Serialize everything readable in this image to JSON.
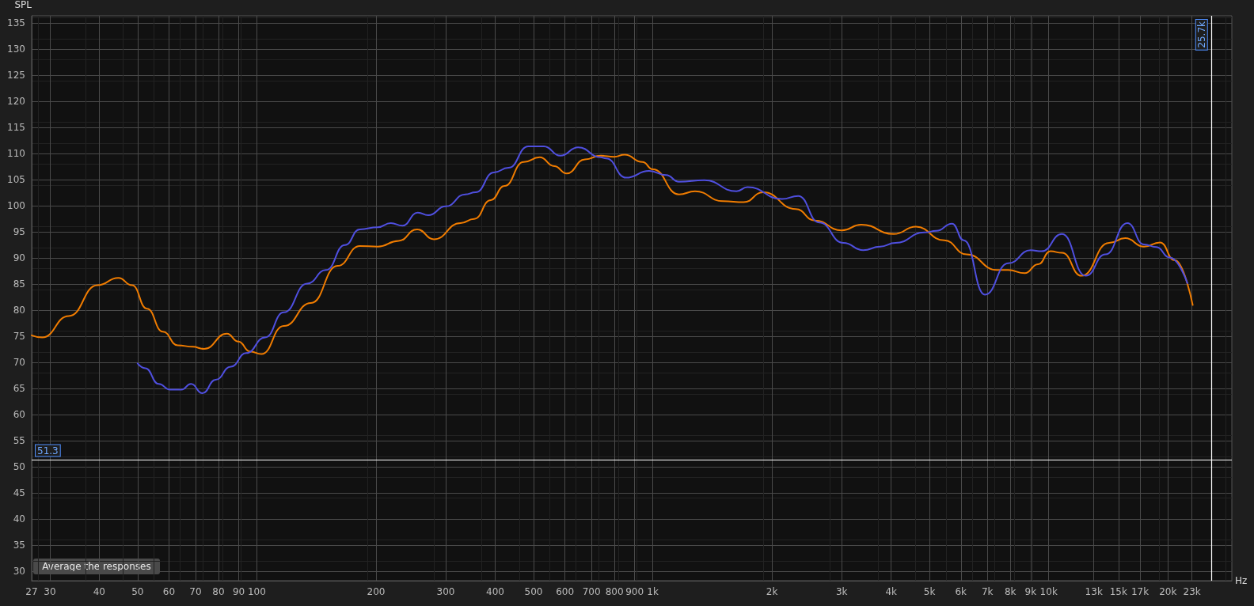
{
  "chart_data": {
    "type": "line",
    "ylabel": "SPL",
    "xlabel": "Hz",
    "log": "x",
    "grid": true,
    "marker": "none",
    "line_style": "solid",
    "xlim": [
      27,
      29000
    ],
    "ylim": [
      28.2,
      136.4
    ],
    "xticks": [
      27,
      30,
      40,
      50,
      60,
      70,
      80,
      90,
      100,
      200,
      300,
      400,
      500,
      600,
      700,
      800,
      900,
      {
        "value": 1000,
        "label": "1k"
      },
      {
        "value": 2000,
        "label": "2k"
      },
      {
        "value": 3000,
        "label": "3k"
      },
      {
        "value": 4000,
        "label": "4k"
      },
      {
        "value": 5000,
        "label": "5k"
      },
      {
        "value": 6000,
        "label": "6k"
      },
      {
        "value": 7000,
        "label": "7k"
      },
      {
        "value": 8000,
        "label": "8k"
      },
      {
        "value": 9000,
        "label": "9k"
      },
      {
        "value": 10000,
        "label": "10k"
      },
      {
        "value": 13000,
        "label": "13k"
      },
      {
        "value": 15000,
        "label": "15k"
      },
      {
        "value": 17000,
        "label": "17k"
      },
      {
        "value": 20000,
        "label": "20k"
      },
      {
        "value": 23000,
        "label": "23k"
      }
    ],
    "yticks": [
      30,
      35,
      40,
      45,
      50,
      55,
      60,
      65,
      70,
      75,
      80,
      85,
      90,
      95,
      100,
      105,
      110,
      115,
      120,
      125,
      130,
      135
    ],
    "series": [
      {
        "color": "#f07c00",
        "x": [
          27,
          28.7,
          33.5,
          39.6,
          44.7,
          48.4,
          52.8,
          57.9,
          63.1,
          68.9,
          73.6,
          84,
          89.9,
          96.1,
          102.7,
          117,
          137,
          160,
          182,
          202,
          228,
          254,
          280,
          327,
          354,
          390,
          422,
          472,
          518,
          564,
          606,
          674,
          739,
          798,
          849,
          942,
          1000,
          1165,
          1278,
          1505,
          1698,
          1900,
          2295,
          2565,
          3000,
          3360,
          4060,
          4620,
          5450,
          6200,
          7400,
          7900,
          8700,
          9400,
          10100,
          10800,
          12100,
          14200,
          15600,
          17400,
          19100,
          20800,
          23100
        ],
        "values": [
          75.2,
          74.8,
          78.9,
          84.8,
          86.2,
          84.8,
          80.3,
          75.9,
          73.3,
          73.0,
          72.6,
          75.5,
          74.0,
          72.1,
          71.6,
          77.0,
          81.4,
          88.5,
          92.3,
          92.2,
          93.3,
          95.5,
          93.6,
          96.7,
          97.5,
          101.1,
          103.8,
          108.4,
          109.3,
          107.6,
          106.2,
          108.9,
          109.6,
          109.4,
          109.8,
          108.4,
          107.0,
          102.2,
          102.8,
          100.9,
          100.7,
          102.6,
          99.4,
          97.2,
          95.3,
          96.4,
          94.6,
          96.0,
          93.4,
          90.7,
          87.7,
          87.7,
          87.1,
          88.8,
          91.3,
          91.0,
          86.6,
          92.9,
          93.8,
          92.2,
          93.0,
          89.6,
          81.0
        ]
      },
      {
        "color": "#4f4fdf",
        "x": [
          50,
          52.3,
          56.5,
          60.4,
          64.5,
          68.2,
          72.9,
          78.7,
          86,
          94,
          105,
          117,
          134,
          149.5,
          167,
          182,
          202,
          218,
          233,
          255,
          271,
          300,
          336,
          357,
          397,
          432,
          485,
          531,
          584,
          648,
          739,
          762,
          856,
          979,
          1080,
          1165,
          1350,
          1627,
          1735,
          2120,
          2330,
          2632,
          3030,
          3400,
          3750,
          4100,
          4850,
          5200,
          5700,
          6100,
          6900,
          7900,
          9000,
          9600,
          10800,
          12400,
          13900,
          15800,
          17400,
          18700,
          20200,
          22400
        ],
        "values": [
          69.8,
          68.9,
          65.9,
          64.8,
          64.8,
          65.9,
          64.1,
          66.7,
          69.2,
          71.8,
          74.8,
          79.6,
          85.1,
          87.7,
          92.5,
          95.5,
          95.9,
          96.7,
          96.2,
          98.7,
          98.2,
          99.9,
          102.2,
          102.6,
          106.4,
          107.3,
          111.4,
          111.4,
          109.6,
          111.2,
          109.3,
          109.1,
          105.4,
          106.7,
          105.9,
          104.6,
          104.9,
          102.8,
          103.6,
          101.3,
          101.9,
          96.8,
          92.9,
          91.5,
          92.2,
          92.9,
          94.9,
          95.2,
          96.6,
          93.4,
          83.0,
          89.0,
          91.5,
          91.3,
          94.6,
          86.6,
          90.7,
          96.7,
          92.6,
          92.1,
          90.1,
          85.2
        ]
      }
    ],
    "ref_lines": [
      {
        "axis": "y",
        "value": 51.3,
        "label": "51.3",
        "color": "#ffffff"
      },
      {
        "axis": "x",
        "value": 25700,
        "label": "25.7k",
        "color": "#ffffff"
      }
    ],
    "annotations": [
      "Average the responses"
    ]
  }
}
